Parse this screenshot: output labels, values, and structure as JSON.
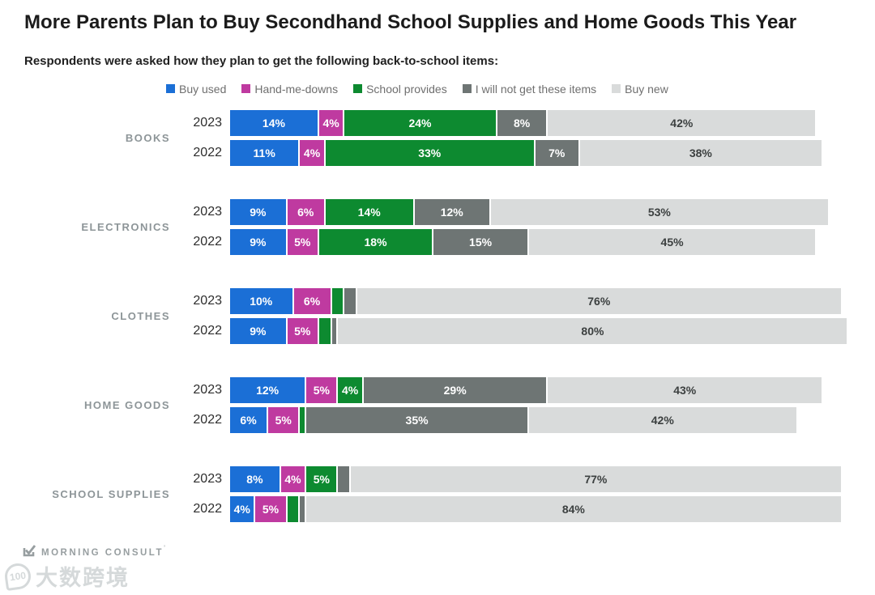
{
  "title": "More Parents Plan to Buy Secondhand School Supplies and Home Goods This Year",
  "subtitle": "Respondents were asked how they plan to get the following back-to-school items:",
  "legend": [
    {
      "label": "Buy used",
      "color": "#1b6fd6"
    },
    {
      "label": "Hand-me-downs",
      "color": "#bf3aa0"
    },
    {
      "label": "School provides",
      "color": "#0d8a30"
    },
    {
      "label": "I will not get these items",
      "color": "#6e7574"
    },
    {
      "label": "Buy new",
      "color": "#d9dbdb"
    }
  ],
  "chart_data": {
    "type": "bar",
    "orientation": "horizontal",
    "stacked": true,
    "unit": "%",
    "xlim": [
      0,
      100
    ],
    "grid": false,
    "legend_position": "top",
    "series_names": [
      "Buy used",
      "Hand-me-downs",
      "School provides",
      "I will not get these items",
      "Buy new"
    ],
    "groups": [
      {
        "category": "BOOKS",
        "rows": [
          {
            "year": "2023",
            "values": [
              14,
              4,
              24,
              8,
              42
            ],
            "labels": [
              "14%",
              "4%",
              "24%",
              "8%",
              "42%"
            ]
          },
          {
            "year": "2022",
            "values": [
              11,
              4,
              33,
              7,
              38
            ],
            "labels": [
              "11%",
              "4%",
              "33%",
              "7%",
              "38%"
            ]
          }
        ]
      },
      {
        "category": "ELECTRONICS",
        "rows": [
          {
            "year": "2023",
            "values": [
              9,
              6,
              14,
              12,
              53
            ],
            "labels": [
              "9%",
              "6%",
              "14%",
              "12%",
              "53%"
            ]
          },
          {
            "year": "2022",
            "values": [
              9,
              5,
              18,
              15,
              45
            ],
            "labels": [
              "9%",
              "5%",
              "18%",
              "15%",
              "45%"
            ]
          }
        ]
      },
      {
        "category": "CLOTHES",
        "rows": [
          {
            "year": "2023",
            "values": [
              10,
              6,
              2,
              2,
              76
            ],
            "labels": [
              "10%",
              "6%",
              "",
              "",
              "76%"
            ]
          },
          {
            "year": "2022",
            "values": [
              9,
              5,
              2,
              1,
              80
            ],
            "labels": [
              "9%",
              "5%",
              "",
              "",
              "80%"
            ]
          }
        ]
      },
      {
        "category": "HOME GOODS",
        "rows": [
          {
            "year": "2023",
            "values": [
              12,
              5,
              4,
              29,
              43
            ],
            "labels": [
              "12%",
              "5%",
              "4%",
              "29%",
              "43%"
            ]
          },
          {
            "year": "2022",
            "values": [
              6,
              5,
              1,
              35,
              42
            ],
            "labels": [
              "6%",
              "5%",
              "",
              "35%",
              "42%"
            ]
          }
        ]
      },
      {
        "category": "SCHOOL SUPPLIES",
        "rows": [
          {
            "year": "2023",
            "values": [
              8,
              4,
              5,
              2,
              77
            ],
            "labels": [
              "8%",
              "4%",
              "5%",
              "",
              "77%"
            ]
          },
          {
            "year": "2022",
            "values": [
              4,
              5,
              2,
              1,
              84
            ],
            "labels": [
              "4%",
              "5%",
              "",
              "",
              "84%"
            ]
          }
        ]
      }
    ],
    "note": "unlabeled sliver segments estimated from bar widths; labels shown in chart only for segments of 4% or more"
  },
  "colors": {
    "label_on_dark": "#ffffff",
    "label_on_light": "#3c4040",
    "title_text": "#1b1b1b",
    "category_text": "#8d9598",
    "brand_text": "#979ea0"
  },
  "footer": {
    "brand": "MORNING CONSULT",
    "trademark": "’",
    "watermark_icon_text": "100",
    "watermark_text": "大数跨境"
  }
}
